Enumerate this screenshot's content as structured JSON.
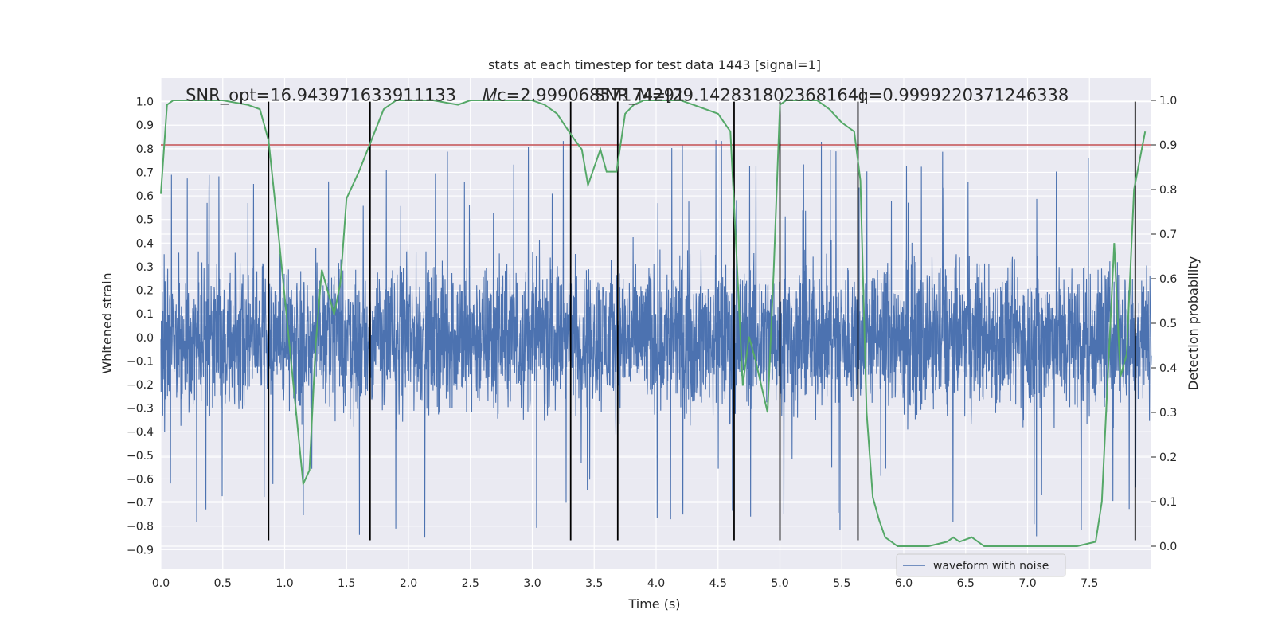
{
  "chart_data": {
    "type": "line",
    "title": "stats at each timestep for test data 1443 [signal=1]",
    "xlabel": "Time (s)",
    "ylabel_left": "Whitened strain",
    "ylabel_right": "Detection probability",
    "xlim": [
      0,
      8.0
    ],
    "ylim_left": [
      -0.98,
      1.1
    ],
    "ylim_right": [
      -0.05,
      1.05
    ],
    "x_ticks": [
      0,
      0.5,
      1.0,
      1.5,
      2.0,
      2.5,
      3.0,
      3.5,
      4.0,
      4.5,
      5.0,
      5.5,
      6.0,
      6.5,
      7.0,
      7.5
    ],
    "y_ticks_left": [
      -0.9,
      -0.8,
      -0.7,
      -0.6,
      -0.5,
      -0.4,
      -0.3,
      -0.2,
      -0.1,
      0.0,
      0.1,
      0.2,
      0.3,
      0.4,
      0.5,
      0.6,
      0.7,
      0.8,
      0.9,
      1.0
    ],
    "y_ticks_right": [
      0.0,
      0.1,
      0.2,
      0.3,
      0.4,
      0.5,
      0.6,
      0.7,
      0.8,
      0.9,
      1.0
    ],
    "grid": true,
    "legend_position": "lower-right",
    "series": [
      {
        "name": "waveform with noise",
        "axis": "left",
        "color": "#4c72b0",
        "style": "noise",
        "envelope": 0.45,
        "peak_max": 0.84,
        "trough_min": -0.86
      },
      {
        "name": "",
        "axis": "right",
        "color": "#55a868",
        "x": [
          0.0,
          0.05,
          0.1,
          0.2,
          0.3,
          0.5,
          0.7,
          0.8,
          0.87,
          0.95,
          1.05,
          1.15,
          1.2,
          1.25,
          1.3,
          1.4,
          1.45,
          1.5,
          1.6,
          1.7,
          1.8,
          1.9,
          2.0,
          2.2,
          2.4,
          2.5,
          2.75,
          3.0,
          3.1,
          3.2,
          3.32,
          3.4,
          3.45,
          3.55,
          3.6,
          3.68,
          3.75,
          3.82,
          3.9,
          4.0,
          4.2,
          4.4,
          4.5,
          4.6,
          4.65,
          4.7,
          4.75,
          4.8,
          4.85,
          4.9,
          4.95,
          5.0,
          5.05,
          5.1,
          5.2,
          5.3,
          5.4,
          5.5,
          5.6,
          5.65,
          5.7,
          5.75,
          5.8,
          5.85,
          5.95,
          6.05,
          6.2,
          6.35,
          6.4,
          6.45,
          6.55,
          6.65,
          6.8,
          7.0,
          7.2,
          7.4,
          7.55,
          7.6,
          7.7,
          7.75,
          7.8,
          7.86,
          7.95
        ],
        "y": [
          0.79,
          0.99,
          1.0,
          1.0,
          1.0,
          1.0,
          0.99,
          0.98,
          0.91,
          0.7,
          0.42,
          0.14,
          0.17,
          0.45,
          0.62,
          0.52,
          0.59,
          0.78,
          0.84,
          0.91,
          0.98,
          1.0,
          1.0,
          1.0,
          0.99,
          1.0,
          1.0,
          1.0,
          0.99,
          0.97,
          0.92,
          0.89,
          0.81,
          0.89,
          0.84,
          0.84,
          0.97,
          0.99,
          1.0,
          1.0,
          1.0,
          0.98,
          0.97,
          0.93,
          0.65,
          0.36,
          0.47,
          0.42,
          0.36,
          0.3,
          0.62,
          0.99,
          1.0,
          1.0,
          1.0,
          1.0,
          0.98,
          0.95,
          0.93,
          0.82,
          0.3,
          0.11,
          0.06,
          0.02,
          0.0,
          0.0,
          0.0,
          0.01,
          0.02,
          0.01,
          0.02,
          0.0,
          0.0,
          0.0,
          0.0,
          0.0,
          0.01,
          0.1,
          0.68,
          0.38,
          0.43,
          0.8,
          0.93
        ]
      }
    ],
    "threshold": {
      "axis": "right",
      "value": 0.9,
      "color": "#c44e52"
    },
    "vlines": [
      0.87,
      1.69,
      3.31,
      3.69,
      4.63,
      5.0,
      5.63,
      7.87
    ],
    "vline_range": [
      -0.86,
      1.0
    ],
    "annotations": [
      {
        "text": "SNR_opt=16.943971633911133",
        "x": 0.2
      },
      {
        "text": "𝑀c=2.99906857174291",
        "x": 2.6
      },
      {
        "text": "SNR_M=[29.142831802368164]",
        "x": 3.5
      },
      {
        "text": "q=0.9999220371246338",
        "x": 5.63
      }
    ],
    "annotation_y": 1.0
  }
}
